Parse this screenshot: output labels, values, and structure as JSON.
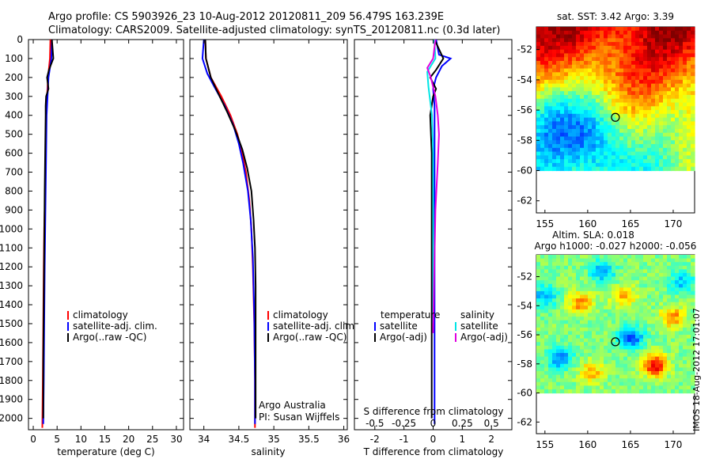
{
  "header": {
    "line1": "Argo profile: CS 5903926_23 10-Aug-2012 20120811_209 56.479S 163.239E",
    "line2": "Climatology: CARS2009. Satellite-adjusted climatology: synTS_20120811.nc (0.3d later)"
  },
  "stamp": "IMOS 18-Aug-2012 17:01:07",
  "colors": {
    "climatology": "#ff0000",
    "satellite": "#0000ff",
    "argo": "#000000",
    "sal_satellite": "#00e5e5",
    "sal_argo": "#e000e0"
  },
  "chart_data": [
    {
      "type": "line",
      "xlabel": "temperature (deg C)",
      "ylabel": "",
      "xlim": [
        -1,
        31.5
      ],
      "ylim": [
        2060,
        0
      ],
      "x_ticks": [
        "0",
        "5",
        "10",
        "15",
        "20",
        "25",
        "30"
      ],
      "x_tick_values": [
        0,
        5,
        10,
        15,
        20,
        25,
        30
      ],
      "y_ticks": [
        "0",
        "100",
        "200",
        "300",
        "400",
        "500",
        "600",
        "700",
        "800",
        "900",
        "1000",
        "1100",
        "1200",
        "1300",
        "1400",
        "1500",
        "1600",
        "1700",
        "1800",
        "1900",
        "2000"
      ],
      "y_tick_values": [
        0,
        100,
        200,
        300,
        400,
        500,
        600,
        700,
        800,
        900,
        1000,
        1100,
        1200,
        1300,
        1400,
        1500,
        1600,
        1700,
        1800,
        1900,
        2000
      ],
      "legend": [
        "climatology",
        "satellite-adj. clim.",
        "Argo(..raw -QC)"
      ],
      "legend_position": "center-left",
      "series": [
        {
          "name": "climatology",
          "color": "#ff0000",
          "x": [
            3.6,
            3.5,
            3.1,
            2.9,
            2.7,
            2.6,
            2.5,
            2.3,
            2.2,
            2.1,
            2.0,
            1.9
          ],
          "y": [
            0,
            100,
            200,
            300,
            400,
            600,
            800,
            1000,
            1200,
            1500,
            1800,
            2050
          ]
        },
        {
          "name": "satellite-adj. clim.",
          "color": "#0000ff",
          "x": [
            3.9,
            3.8,
            3.2,
            3.0,
            2.8,
            2.7,
            2.6,
            2.5,
            2.4,
            2.3,
            2.2,
            2.1
          ],
          "y": [
            0,
            100,
            200,
            300,
            400,
            600,
            800,
            1000,
            1200,
            1500,
            1800,
            2030
          ]
        },
        {
          "name": "Argo(..raw -QC)",
          "color": "#000000",
          "x": [
            3.9,
            4.2,
            3.3,
            2.9,
            3.2,
            2.7,
            2.6,
            2.6,
            2.5,
            2.4,
            2.3,
            2.2,
            2.1,
            2.1
          ],
          "y": [
            0,
            100,
            160,
            200,
            260,
            300,
            350,
            400,
            600,
            800,
            1100,
            1400,
            1700,
            2000
          ]
        }
      ]
    },
    {
      "type": "line",
      "xlabel": "salinity",
      "ylabel": "",
      "xlim": [
        33.8,
        36.05
      ],
      "ylim": [
        2060,
        0
      ],
      "x_ticks": [
        "34",
        "34.5",
        "35",
        "35.5",
        "36"
      ],
      "x_tick_values": [
        34,
        34.5,
        35,
        35.5,
        36
      ],
      "legend": [
        "climatology",
        "satellite-adj. clim.",
        "Argo(..raw -QC)"
      ],
      "legend_position": "center-right",
      "annotation": [
        "Argo Australia",
        "PI: Susan Wijffels"
      ],
      "series": [
        {
          "name": "climatology",
          "color": "#ff0000",
          "x": [
            34.02,
            34.03,
            34.1,
            34.25,
            34.38,
            34.48,
            34.55,
            34.6,
            34.65,
            34.68,
            34.7,
            34.72,
            34.73,
            34.73
          ],
          "y": [
            0,
            100,
            200,
            300,
            400,
            500,
            600,
            700,
            850,
            1000,
            1200,
            1500,
            1800,
            2050
          ]
        },
        {
          "name": "satellite-adj. clim.",
          "color": "#0000ff",
          "x": [
            34.0,
            33.98,
            34.05,
            34.15,
            34.3,
            34.42,
            34.5,
            34.56,
            34.63,
            34.67,
            34.7,
            34.72,
            34.73,
            34.73
          ],
          "y": [
            0,
            100,
            180,
            250,
            350,
            450,
            550,
            650,
            800,
            950,
            1150,
            1450,
            1800,
            2030
          ]
        },
        {
          "name": "Argo(..raw -QC)",
          "color": "#000000",
          "x": [
            34.02,
            34.03,
            34.1,
            34.2,
            34.33,
            34.45,
            34.55,
            34.62,
            34.68,
            34.71,
            34.73,
            34.74,
            34.74,
            34.74
          ],
          "y": [
            0,
            100,
            200,
            280,
            380,
            480,
            580,
            680,
            800,
            950,
            1100,
            1300,
            1600,
            2000
          ]
        }
      ]
    },
    {
      "type": "line",
      "xlabel": "T difference from climatology",
      "ylabel": "",
      "xlim": [
        -2.7,
        2.7
      ],
      "ylim": [
        2060,
        0
      ],
      "x_ticks": [
        "-2",
        "-1",
        "0",
        "1",
        "2"
      ],
      "x_tick_values": [
        -2,
        -1,
        0,
        1,
        2
      ],
      "top_axis_label": "S difference from climatology",
      "top_ticks": [
        "-0.5",
        "-0.25",
        "0",
        "0.25",
        "0.5"
      ],
      "top_tick_values": [
        -0.5,
        -0.25,
        0,
        0.25,
        0.5
      ],
      "legend_titles": [
        "temperature",
        "salinity"
      ],
      "legend_left": [
        "satellite",
        "Argo(-adj)"
      ],
      "legend_right": [
        "satellite",
        "Argo(-adj)"
      ],
      "series": [
        {
          "name": "temperature satellite",
          "color": "#0000ff",
          "x": [
            0.1,
            0.2,
            0.6,
            0.3,
            0.1,
            0.0,
            0.05,
            0.05,
            0.05,
            0.05,
            0.05,
            0.05,
            0.05
          ],
          "y": [
            0,
            80,
            100,
            140,
            200,
            260,
            350,
            500,
            800,
            1100,
            1400,
            1700,
            2030
          ]
        },
        {
          "name": "temperature Argo(-adj)",
          "color": "#000000",
          "x": [
            0.05,
            0.35,
            0.1,
            -0.1,
            0.1,
            0.0,
            -0.1,
            -0.05,
            -0.05,
            -0.05,
            -0.05,
            -0.05,
            -0.05
          ],
          "y": [
            0,
            100,
            160,
            200,
            260,
            300,
            400,
            600,
            800,
            1100,
            1400,
            1700,
            2000
          ]
        },
        {
          "name": "salinity satellite",
          "color": "#00e5e5",
          "x": [
            0.01,
            0.02,
            -0.05,
            -0.04,
            -0.01,
            0,
            0,
            0,
            0,
            0
          ],
          "y": [
            0,
            100,
            170,
            250,
            400,
            600,
            800,
            1000,
            1200,
            1500
          ]
        },
        {
          "name": "salinity Argo(-adj)",
          "color": "#e000e0",
          "x": [
            0.02,
            0.0,
            -0.05,
            -0.02,
            0.02,
            0.04,
            0.05,
            0.04,
            0.02,
            0.01,
            0.0
          ],
          "y": [
            0,
            100,
            150,
            200,
            300,
            400,
            500,
            650,
            900,
            1200,
            1550
          ]
        }
      ]
    },
    {
      "type": "heatmap",
      "title": "sat. SST: 3.42  Argo: 3.39",
      "xlim": [
        154,
        172.5
      ],
      "ylim": [
        -62.8,
        -50.5
      ],
      "x_ticks": [
        "155",
        "160",
        "165",
        "170"
      ],
      "x_tick_values": [
        155,
        160,
        165,
        170
      ],
      "y_ticks": [
        "-52",
        "-54",
        "-56",
        "-58",
        "-60",
        "-62"
      ],
      "y_tick_values": [
        -52,
        -54,
        -56,
        -58,
        -60,
        -62
      ],
      "data_extent": {
        "lat_min": -60,
        "lat_max": -50.5
      },
      "marker": {
        "lon": 163.239,
        "lat": -56.479
      },
      "colormap": "jet"
    },
    {
      "type": "heatmap",
      "title": "Altim. SLA: 0.018",
      "subtitle": "Argo h1000: -0.027  h2000: -0.056",
      "xlim": [
        154,
        172.5
      ],
      "ylim": [
        -62.8,
        -50.5
      ],
      "x_ticks": [
        "155",
        "160",
        "165",
        "170"
      ],
      "x_tick_values": [
        155,
        160,
        165,
        170
      ],
      "y_ticks": [
        "-52",
        "-54",
        "-56",
        "-58",
        "-60",
        "-62"
      ],
      "y_tick_values": [
        -52,
        -54,
        -56,
        -58,
        -60,
        -62
      ],
      "data_extent": {
        "lat_min": -60,
        "lat_max": -50.5
      },
      "marker": {
        "lon": 163.239,
        "lat": -56.479
      },
      "colormap": "jet"
    }
  ]
}
